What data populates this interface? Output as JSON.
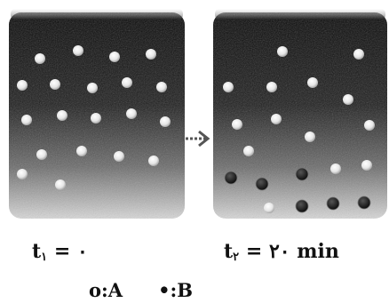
{
  "beakers": [
    {
      "name": "beaker-t1",
      "label": {
        "symbol": "t",
        "subscript": "۱",
        "equals": "=",
        "value": "۰",
        "unit": ""
      },
      "counts": {
        "A": 20,
        "B": 0
      }
    },
    {
      "name": "beaker-t2",
      "label": {
        "symbol": "t",
        "subscript": "۲",
        "equals": "=",
        "value": "۲۰",
        "unit": "min"
      },
      "counts": {
        "A": 14,
        "B": 6
      }
    }
  ],
  "legend": {
    "a": {
      "symbol": "o",
      "separator": ":",
      "species": "A"
    },
    "b": {
      "symbol": "•",
      "separator": ":",
      "species": "B"
    }
  },
  "arrow": {
    "icon": "arrow-right-icon"
  },
  "colors": {
    "liquid_top": "#0a0a0a",
    "liquid_bottom": "#cfcfcf",
    "particle_a": "#f2f2f2",
    "particle_b": "#1a1a1a",
    "text": "#111111"
  }
}
